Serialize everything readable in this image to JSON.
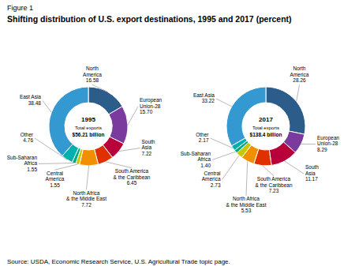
{
  "title": "Shifting distribution of U.S. export destinations, 1995 and 2017 (percent)",
  "annotations": [
    "Figure 1",
    "Source: USDA, Economic Research Service, U.S. Agricultural Trade topic page."
  ],
  "chart_data": [
    {
      "type": "donut",
      "title": "1995",
      "annotations": [
        "Total exports",
        "$56.21 billion"
      ],
      "categories": [
        "North\nAmerica",
        "European\nUnion-28",
        "South\nAsia",
        "South America\n& the Caribbean",
        "North Africa\n& the Middle East",
        "Central\nAmerica",
        "Sub-Saharan\nAfrica",
        "Other",
        "East Asia"
      ],
      "values": [
        16.58,
        15.7,
        7.22,
        6.45,
        7.72,
        1.55,
        1.55,
        4.76,
        38.48
      ],
      "value_labels": [
        "16.58",
        "15.70",
        "7.22",
        "6.45",
        "7.72",
        "1.55",
        "1.55",
        "4.76",
        "38.48"
      ],
      "colors": [
        "#2b5c8a",
        "#7b3b9e",
        "#b8003a",
        "#e03000",
        "#f09000",
        "#c8c800",
        "#00aa80",
        "#00b0b0",
        "#3399d0"
      ],
      "data_labels": true
    },
    {
      "type": "donut",
      "title": "2017",
      "annotations": [
        "Total exports",
        "$138.4 billion"
      ],
      "categories": [
        "North\nAmerica",
        "European\nUnion-28",
        "South\nAsia",
        "South America\n& the Caribbean",
        "North Africa\n& the Middle East",
        "Central\nAmerica",
        "Sub-Saharan\nAfrica",
        "Other",
        "East Asia"
      ],
      "values": [
        28.26,
        8.29,
        11.17,
        7.23,
        5.53,
        2.73,
        1.4,
        2.17,
        33.22
      ],
      "value_labels": [
        "28.26",
        "8.29",
        "11.17",
        "7.23",
        "5.53",
        "2.73",
        "1.40",
        "2.17",
        "33.22"
      ],
      "colors": [
        "#2b5c8a",
        "#7b3b9e",
        "#b8003a",
        "#e03000",
        "#f09000",
        "#c8c800",
        "#00aa80",
        "#00b0b0",
        "#3399d0"
      ],
      "data_labels": true
    }
  ]
}
